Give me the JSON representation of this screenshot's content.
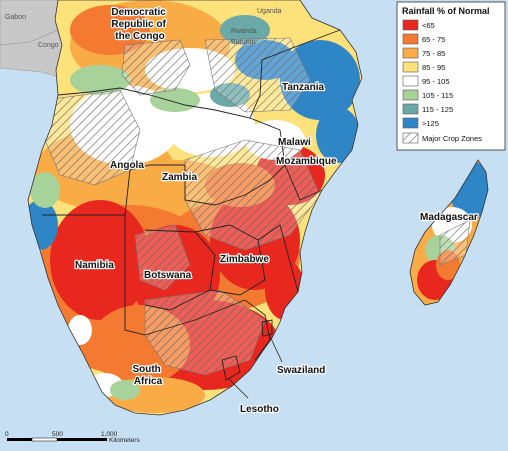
{
  "legend": {
    "title": "Rainfall % of Normal",
    "classes": [
      {
        "label": "<65",
        "color": "#e8281e"
      },
      {
        "label": "65 - 75",
        "color": "#f47a32"
      },
      {
        "label": "75 - 85",
        "color": "#f9ab45"
      },
      {
        "label": "85 - 95",
        "color": "#fde17a"
      },
      {
        "label": "95 - 105",
        "color": "#ffffff"
      },
      {
        "label": "105 - 115",
        "color": "#a7d29a"
      },
      {
        "label": "115 - 125",
        "color": "#6aa9a8"
      },
      {
        "label": ">125",
        "color": "#2f86c6"
      }
    ],
    "crop_zones_label": "Major Crop Zones"
  },
  "labels": {
    "drc": [
      "Democratic",
      "Republic of",
      "the Congo"
    ],
    "tanzania": "Tanzania",
    "angola": "Angola",
    "zambia": "Zambia",
    "malawi": "Malawi",
    "mozambique": "Mozambique",
    "madagascar": "Madagascar",
    "namibia": "Namibia",
    "botswana": "Botswana",
    "zimbabwe": "Zimbabwe",
    "swaziland": "Swaziland",
    "south_africa": [
      "South",
      "Africa"
    ],
    "lesotho": "Lesotho",
    "gabon": "Gabon",
    "congo": "Congo",
    "uganda": "Uganda",
    "rwanda": "Rwanda",
    "burundi": "Burundi"
  },
  "scalebar": {
    "ticks": [
      "0",
      "500",
      "1,000"
    ],
    "unit": "Kilometers"
  }
}
